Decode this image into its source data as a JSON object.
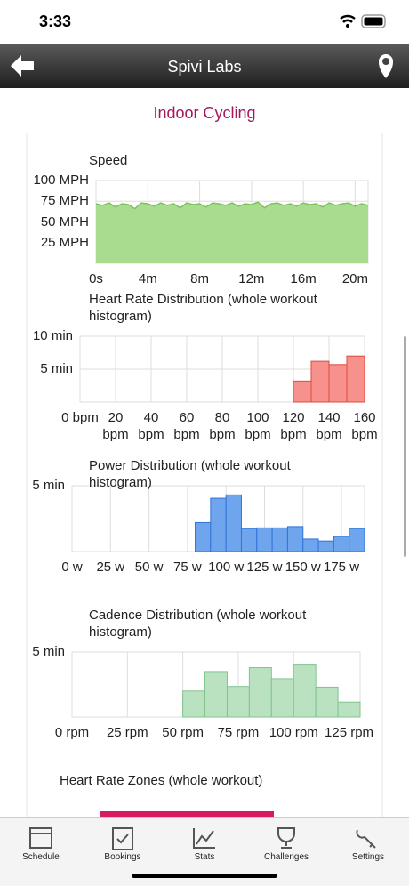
{
  "status_bar": {
    "time": "3:33"
  },
  "nav": {
    "title": "Spivi Labs"
  },
  "header": {
    "title": "Indoor Cycling"
  },
  "chart_data": [
    {
      "type": "area",
      "title": "Speed",
      "color": "#7cc35a",
      "fill": "#a9dc8e",
      "x": [
        0,
        0.5,
        1,
        1.5,
        2,
        2.5,
        3,
        3.5,
        4,
        4.5,
        5,
        5.5,
        6,
        6.5,
        7,
        7.5,
        8,
        8.5,
        9,
        9.5,
        10,
        10.5,
        11,
        11.5,
        12,
        12.5,
        13,
        13.5,
        14,
        14.5,
        15,
        15.5,
        16,
        16.5,
        17,
        17.5,
        18,
        18.5,
        19,
        19.5,
        20,
        20.5,
        21
      ],
      "values": [
        72,
        70,
        73,
        68,
        72,
        71,
        66,
        73,
        72,
        69,
        73,
        70,
        72,
        67,
        73,
        71,
        72,
        68,
        73,
        72,
        70,
        73,
        69,
        72,
        71,
        74,
        67,
        72,
        73,
        70,
        72,
        69,
        73,
        71,
        72,
        68,
        73,
        70,
        72,
        73,
        69,
        72,
        70
      ],
      "xlim": [
        0,
        21
      ],
      "ylim": [
        0,
        100
      ],
      "xticks": [
        {
          "value": 0,
          "label": "0s"
        },
        {
          "value": 4,
          "label": "4m"
        },
        {
          "value": 8,
          "label": "8m"
        },
        {
          "value": 12,
          "label": "12m"
        },
        {
          "value": 16,
          "label": "16m"
        },
        {
          "value": 20,
          "label": "20m"
        }
      ],
      "yticks": [
        {
          "value": 25,
          "label": "25 MPH"
        },
        {
          "value": 50,
          "label": "50 MPH"
        },
        {
          "value": 75,
          "label": "75 MPH"
        },
        {
          "value": 100,
          "label": "100 MPH"
        }
      ],
      "grid": true
    },
    {
      "type": "histogram",
      "title": "Heart Rate Distribution (whole workout histogram)",
      "color": "#e0493f",
      "fill": "#f6928b",
      "bins": [
        0,
        10,
        20,
        30,
        40,
        50,
        60,
        70,
        80,
        90,
        100,
        110,
        120,
        130,
        140,
        150,
        160
      ],
      "values": [
        0,
        0,
        0,
        0,
        0,
        0,
        0,
        0,
        0,
        0,
        0,
        0,
        3.2,
        6.2,
        5.7,
        7.0
      ],
      "xlim": [
        0,
        160
      ],
      "ylim": [
        0,
        10
      ],
      "xticks": [
        {
          "value": 0,
          "label": "0 bpm"
        },
        {
          "value": 20,
          "label": "20 bpm"
        },
        {
          "value": 40,
          "label": "40 bpm"
        },
        {
          "value": 60,
          "label": "60 bpm"
        },
        {
          "value": 80,
          "label": "80 bpm"
        },
        {
          "value": 100,
          "label": "100 bpm"
        },
        {
          "value": 120,
          "label": "120 bpm"
        },
        {
          "value": 140,
          "label": "140 bpm"
        },
        {
          "value": 160,
          "label": "160 bpm"
        }
      ],
      "yticks": [
        {
          "value": 5,
          "label": "5 min"
        },
        {
          "value": 10,
          "label": "10 min"
        }
      ],
      "grid": true
    },
    {
      "type": "histogram",
      "title": "Power Distribution (whole workout histogram)",
      "color": "#2f74d8",
      "fill": "#6fa5ec",
      "bins": [
        0,
        10,
        20,
        30,
        40,
        50,
        60,
        70,
        80,
        90,
        100,
        110,
        120,
        130,
        140,
        150,
        160,
        170,
        180,
        190
      ],
      "values": [
        0,
        0,
        0,
        0,
        0,
        0,
        0,
        0,
        2.2,
        4.05,
        4.3,
        1.75,
        1.8,
        1.8,
        1.9,
        0.95,
        0.8,
        1.15,
        1.75
      ],
      "xlim": [
        0,
        190
      ],
      "ylim": [
        0,
        5
      ],
      "xticks": [
        {
          "value": 0,
          "label": "0 w"
        },
        {
          "value": 25,
          "label": "25 w"
        },
        {
          "value": 50,
          "label": "50 w"
        },
        {
          "value": 75,
          "label": "75 w"
        },
        {
          "value": 100,
          "label": "100 w"
        },
        {
          "value": 125,
          "label": "125 w"
        },
        {
          "value": 150,
          "label": "150 w"
        },
        {
          "value": 175,
          "label": "175 w"
        }
      ],
      "yticks": [
        {
          "value": 5,
          "label": "5 min"
        }
      ],
      "grid": true
    },
    {
      "type": "histogram",
      "title": "Cadence Distribution (whole workout histogram)",
      "color": "#7fc48c",
      "fill": "#bbe2c0",
      "bins": [
        0,
        10,
        20,
        30,
        40,
        50,
        60,
        70,
        80,
        90,
        100,
        110,
        120,
        130
      ],
      "values": [
        0,
        0,
        0,
        0,
        0,
        2.0,
        3.5,
        2.35,
        3.8,
        2.95,
        4.0,
        2.3,
        1.15
      ],
      "xlim": [
        0,
        130
      ],
      "ylim": [
        0,
        5
      ],
      "xticks": [
        {
          "value": 0,
          "label": "0 rpm"
        },
        {
          "value": 25,
          "label": "25 rpm"
        },
        {
          "value": 50,
          "label": "50 rpm"
        },
        {
          "value": 75,
          "label": "75 rpm"
        },
        {
          "value": 100,
          "label": "100 rpm"
        },
        {
          "value": 125,
          "label": "125 rpm"
        }
      ],
      "yticks": [
        {
          "value": 5,
          "label": "5 min"
        }
      ],
      "grid": true
    }
  ],
  "section": {
    "title": "Heart Rate Zones (whole workout)"
  },
  "tabs": [
    "Schedule",
    "Bookings",
    "Stats",
    "Challenges",
    "Settings"
  ]
}
